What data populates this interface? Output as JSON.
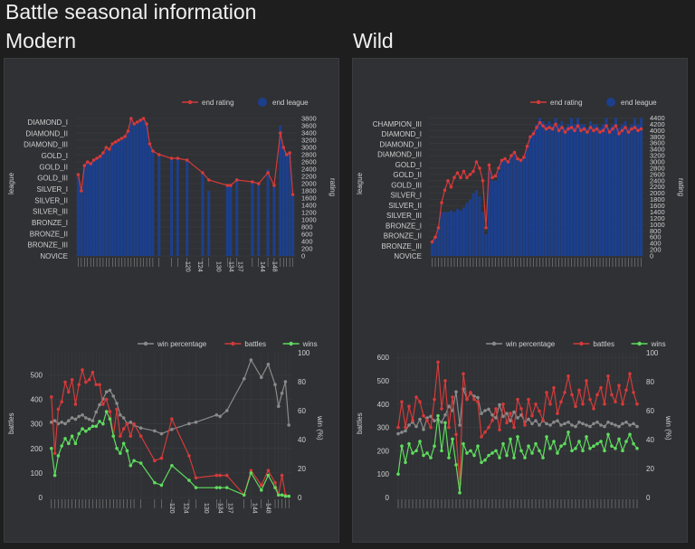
{
  "page_title": "Battle seasonal information",
  "sections": [
    {
      "title": "Modern"
    },
    {
      "title": "Wild"
    }
  ],
  "colors": {
    "rating": "#d63a3a",
    "league": "#1c3f8c",
    "win_pct": "#8a8a8a",
    "battles": "#d63a3a",
    "wins": "#5fdc5f"
  },
  "chart_data": [
    {
      "id": "modern-rating",
      "type": "bar",
      "legend_placement": "top-right",
      "legend": [
        "end rating",
        "end league"
      ],
      "xlabel": "",
      "ylabel": "league",
      "y2label": "rating",
      "league_ticks": [
        "NOVICE",
        "BRONZE_III",
        "BRONZE_II",
        "BRONZE_I",
        "SILVER_III",
        "SILVER_II",
        "SILVER_I",
        "GOLD_III",
        "GOLD_II",
        "GOLD_I",
        "DIAMOND_III",
        "DIAMOND_II",
        "DIAMOND_I"
      ],
      "ylim2": [
        0,
        3900
      ],
      "y2_ticks": [
        0,
        200,
        400,
        600,
        800,
        1000,
        1200,
        1400,
        1600,
        1800,
        2000,
        2200,
        2400,
        2600,
        2800,
        3000,
        3200,
        3400,
        3600,
        3800
      ],
      "x_ticks": [
        120,
        124,
        130,
        134,
        137,
        144,
        148
      ],
      "x": [
        86,
        87,
        88,
        89,
        90,
        91,
        92,
        93,
        94,
        95,
        96,
        97,
        98,
        99,
        100,
        101,
        102,
        103,
        104,
        105,
        106,
        107,
        108,
        109,
        110,
        112,
        116,
        118,
        121,
        126,
        128,
        134,
        135,
        137,
        142,
        144,
        147,
        149,
        151,
        152,
        153,
        154,
        155
      ],
      "rating": [
        2250,
        1800,
        2500,
        2600,
        2550,
        2650,
        2700,
        2750,
        2850,
        3000,
        2950,
        3100,
        3150,
        3200,
        3250,
        3300,
        3450,
        3800,
        3650,
        3700,
        3750,
        3800,
        3650,
        3100,
        2900,
        2800,
        2700,
        2700,
        2650,
        2300,
        2100,
        1950,
        1950,
        2100,
        2050,
        2000,
        2300,
        1950,
        3400,
        3000,
        2800,
        2850,
        1700
      ],
      "league": [
        2250,
        1900,
        2500,
        2600,
        2600,
        2650,
        2700,
        2750,
        2850,
        2950,
        2900,
        3050,
        3100,
        3150,
        3200,
        3250,
        3400,
        3800,
        3600,
        3650,
        3750,
        3750,
        3600,
        3100,
        2900,
        2800,
        2700,
        2700,
        2650,
        2300,
        1800,
        1950,
        1950,
        2150,
        2050,
        2000,
        2400,
        1950,
        3600,
        3000,
        2850,
        2850,
        1700
      ]
    },
    {
      "id": "modern-battles",
      "type": "line",
      "legend_placement": "top-right",
      "legend": [
        "win percentage",
        "battles",
        "wins"
      ],
      "ylabel": "battles",
      "y2label": "win (%)",
      "ylim": [
        0,
        590
      ],
      "ylim2": [
        0,
        100
      ],
      "y_ticks": [
        0,
        100,
        200,
        300,
        400,
        500
      ],
      "y2_ticks": [
        0,
        20,
        40,
        60,
        80,
        100
      ],
      "x_ticks": [
        120,
        124,
        130,
        134,
        137,
        144,
        148
      ],
      "x": [
        86,
        87,
        88,
        89,
        90,
        91,
        92,
        93,
        94,
        95,
        96,
        97,
        98,
        99,
        100,
        101,
        102,
        103,
        104,
        105,
        106,
        107,
        108,
        109,
        110,
        112,
        116,
        118,
        121,
        126,
        128,
        134,
        135,
        137,
        142,
        144,
        147,
        149,
        151,
        152,
        153,
        154,
        155
      ],
      "win_pct": [
        52,
        53,
        51,
        52,
        51,
        53,
        55,
        54,
        56,
        57,
        55,
        54,
        53,
        59,
        64,
        68,
        73,
        74,
        70,
        65,
        57,
        55,
        51,
        52,
        50,
        48,
        46,
        44,
        47,
        51,
        52,
        57,
        56,
        60,
        82,
        95,
        83,
        92,
        78,
        63,
        72,
        80,
        50
      ],
      "battles": [
        410,
        180,
        360,
        390,
        470,
        430,
        480,
        380,
        460,
        520,
        470,
        480,
        510,
        460,
        460,
        380,
        400,
        350,
        250,
        360,
        250,
        280,
        300,
        250,
        300,
        250,
        150,
        160,
        320,
        170,
        80,
        90,
        90,
        90,
        10,
        110,
        50,
        110,
        60,
        10,
        90,
        10,
        5
      ],
      "wins": [
        200,
        90,
        170,
        210,
        240,
        220,
        250,
        220,
        260,
        280,
        270,
        280,
        290,
        290,
        310,
        300,
        350,
        320,
        250,
        200,
        180,
        220,
        190,
        130,
        150,
        140,
        60,
        50,
        130,
        70,
        40,
        40,
        40,
        40,
        10,
        100,
        30,
        90,
        40,
        10,
        10,
        5,
        5
      ]
    },
    {
      "id": "wild-rating",
      "type": "bar",
      "legend_placement": "top-right",
      "legend": [
        "end rating",
        "end league"
      ],
      "xlabel": "",
      "ylabel": "league",
      "y2label": "rating",
      "league_ticks": [
        "NOVICE",
        "BRONZE_III",
        "BRONZE_II",
        "BRONZE_I",
        "SILVER_III",
        "SILVER_II",
        "SILVER_I",
        "GOLD_III",
        "GOLD_II",
        "GOLD_I",
        "DIAMOND_III",
        "DIAMOND_II",
        "DIAMOND_I",
        "CHAMPION_III"
      ],
      "ylim2": [
        0,
        4500
      ],
      "y2_ticks": [
        0,
        200,
        400,
        600,
        800,
        1000,
        1200,
        1400,
        1600,
        1800,
        2000,
        2200,
        2400,
        2600,
        2800,
        3000,
        3200,
        3400,
        3600,
        3800,
        4000,
        4200,
        4400
      ],
      "x": [
        44,
        45,
        46,
        47,
        48,
        49,
        50,
        51,
        52,
        53,
        54,
        55,
        56,
        57,
        58,
        59,
        60,
        61,
        62,
        63,
        64,
        65,
        66,
        67,
        68,
        69,
        70,
        71,
        72,
        73,
        74,
        75,
        76,
        77,
        78,
        79,
        80,
        81,
        82,
        83,
        84,
        85,
        86,
        87,
        88,
        89,
        90,
        91,
        92,
        93,
        94,
        95,
        96,
        97,
        98,
        99,
        100,
        101,
        102,
        103,
        104,
        105,
        106,
        107,
        108,
        109,
        110
      ],
      "rating": [
        450,
        600,
        900,
        1700,
        2100,
        2400,
        2200,
        2500,
        2650,
        2500,
        2700,
        2500,
        2600,
        2700,
        3000,
        2800,
        2400,
        900,
        2900,
        2500,
        2550,
        2800,
        3050,
        3100,
        3000,
        3200,
        3300,
        3100,
        3050,
        3150,
        3500,
        3800,
        3900,
        4100,
        4250,
        4150,
        4050,
        4100,
        4050,
        4200,
        4000,
        4100,
        3950,
        4050,
        4100,
        4000,
        4150,
        4000,
        4050,
        3950,
        4100,
        4000,
        4050,
        3950,
        4000,
        4150,
        3950,
        4050,
        4150,
        3900,
        4000,
        4100,
        3950,
        4050,
        4100,
        4000,
        4050
      ],
      "league": [
        400,
        600,
        900,
        1400,
        1400,
        1400,
        1450,
        1400,
        1500,
        1450,
        1550,
        1700,
        1800,
        2000,
        2100,
        1900,
        1400,
        700,
        2700,
        2400,
        2400,
        2700,
        3000,
        3100,
        3000,
        3200,
        3300,
        3100,
        3100,
        3150,
        3500,
        3800,
        4000,
        4200,
        4400,
        4300,
        4200,
        4300,
        4200,
        4400,
        4200,
        4300,
        4100,
        4200,
        4400,
        4200,
        4400,
        4200,
        4200,
        4100,
        4300,
        4200,
        4200,
        4100,
        4200,
        4400,
        4100,
        4200,
        4400,
        4100,
        4200,
        4300,
        4100,
        4200,
        4400,
        4200,
        4400
      ]
    },
    {
      "id": "wild-battles",
      "type": "line",
      "legend_placement": "top-right",
      "legend": [
        "win percentage",
        "battles",
        "wins"
      ],
      "ylabel": "battles",
      "y2label": "win (%)",
      "ylim": [
        0,
        620
      ],
      "ylim2": [
        0,
        100
      ],
      "y_ticks": [
        0,
        100,
        200,
        300,
        400,
        500,
        600
      ],
      "y2_ticks": [
        0,
        20,
        40,
        60,
        80,
        100
      ],
      "x": [
        44,
        45,
        46,
        47,
        48,
        49,
        50,
        51,
        52,
        53,
        54,
        55,
        56,
        57,
        58,
        59,
        60,
        61,
        62,
        63,
        64,
        65,
        66,
        67,
        68,
        69,
        70,
        71,
        72,
        73,
        74,
        75,
        76,
        77,
        78,
        79,
        80,
        81,
        82,
        83,
        84,
        85,
        86,
        87,
        88,
        89,
        90,
        91,
        92,
        93,
        94,
        95,
        96,
        97,
        98,
        99,
        100,
        101,
        102,
        103,
        104,
        105,
        106,
        107,
        108,
        109,
        110
      ],
      "win_pct": [
        44,
        45,
        46,
        50,
        52,
        49,
        54,
        47,
        55,
        56,
        53,
        54,
        52,
        57,
        63,
        60,
        73,
        50,
        75,
        68,
        72,
        70,
        69,
        58,
        60,
        61,
        57,
        55,
        64,
        56,
        58,
        53,
        59,
        55,
        57,
        52,
        54,
        51,
        53,
        50,
        53,
        51,
        50,
        52,
        53,
        50,
        51,
        52,
        50,
        49,
        52,
        51,
        50,
        49,
        51,
        52,
        50,
        49,
        52,
        51,
        50,
        49,
        51,
        52,
        50,
        51,
        49
      ],
      "battles": [
        300,
        410,
        300,
        390,
        330,
        430,
        410,
        350,
        330,
        300,
        420,
        580,
        380,
        500,
        300,
        430,
        270,
        60,
        530,
        420,
        450,
        420,
        410,
        260,
        280,
        300,
        330,
        380,
        290,
        400,
        320,
        360,
        300,
        420,
        380,
        310,
        420,
        350,
        400,
        370,
        330,
        450,
        400,
        470,
        360,
        410,
        450,
        520,
        440,
        390,
        460,
        400,
        500,
        420,
        380,
        440,
        470,
        400,
        520,
        440,
        410,
        480,
        400,
        460,
        530,
        450,
        400
      ],
      "wins": [
        100,
        220,
        150,
        230,
        190,
        200,
        240,
        180,
        190,
        170,
        220,
        350,
        200,
        320,
        170,
        250,
        140,
        20,
        230,
        190,
        200,
        180,
        220,
        150,
        160,
        180,
        190,
        200,
        170,
        230,
        180,
        250,
        170,
        260,
        200,
        170,
        220,
        190,
        230,
        200,
        170,
        260,
        210,
        240,
        190,
        220,
        230,
        280,
        200,
        210,
        240,
        200,
        260,
        210,
        220,
        230,
        240,
        200,
        270,
        220,
        210,
        250,
        200,
        240,
        270,
        230,
        210
      ]
    }
  ]
}
